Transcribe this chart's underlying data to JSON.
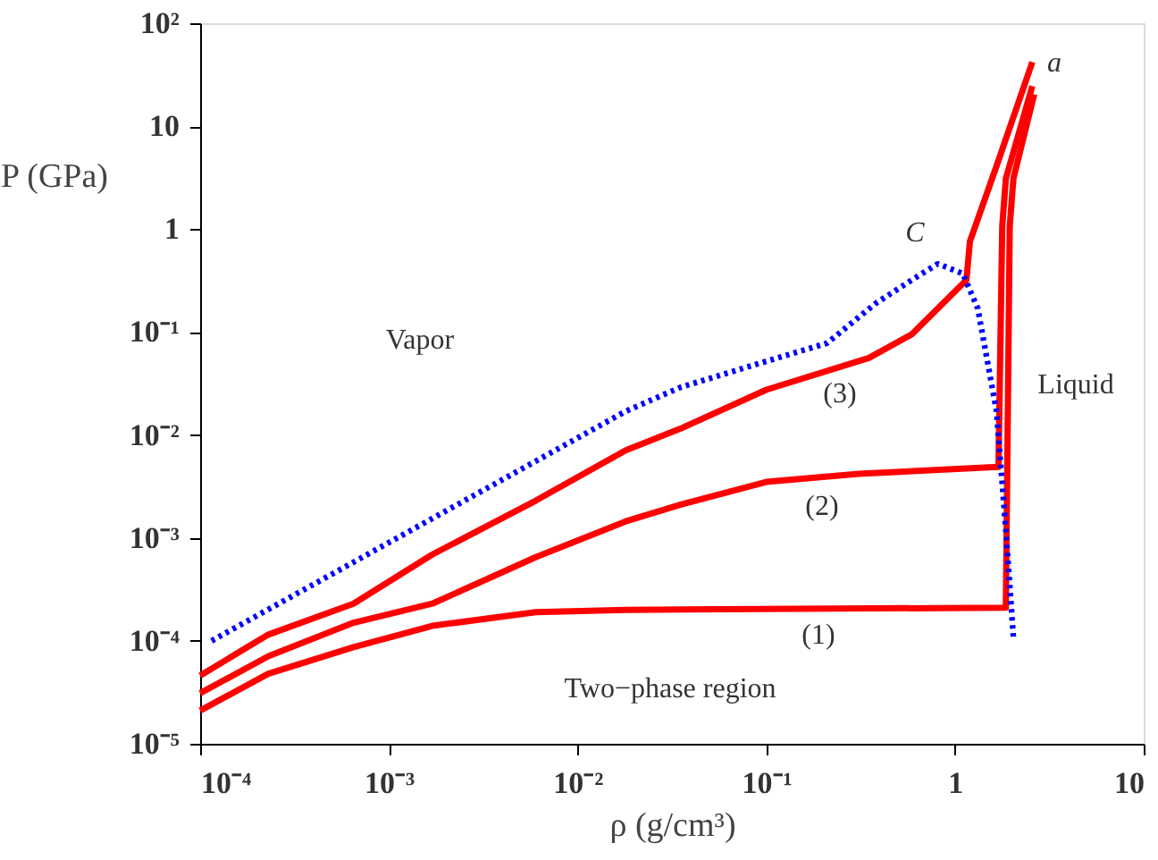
{
  "chart_data": {
    "type": "line",
    "log": "xy",
    "xlabel": "ρ (g/cm³)",
    "ylabel": "P (GPa)",
    "xlim": [
      0.0001,
      10
    ],
    "ylim": [
      1e-05,
      100
    ],
    "xticks": [
      {
        "value": 0.0001,
        "label": "10⁻⁴"
      },
      {
        "value": 0.001,
        "label": "10⁻³"
      },
      {
        "value": 0.01,
        "label": "10⁻²"
      },
      {
        "value": 0.1,
        "label": "10⁻¹"
      },
      1,
      10
    ],
    "yticks": [
      {
        "value": 1e-05,
        "label": "10⁻⁵"
      },
      {
        "value": 0.0001,
        "label": "10⁻⁴"
      },
      {
        "value": 0.001,
        "label": "10⁻³"
      },
      {
        "value": 0.01,
        "label": "10⁻²"
      },
      {
        "value": 0.1,
        "label": "10⁻¹"
      },
      1,
      10,
      {
        "value": 100,
        "label": "10²"
      }
    ],
    "series": [
      {
        "color": "#ff0000",
        "line_style": "solid",
        "x": [
          0.0001,
          0.00023,
          0.00065,
          0.0017,
          0.006,
          0.018,
          1.86,
          1.95,
          2.04,
          2.63
        ],
        "values": [
          2.1e-05,
          4.8e-05,
          8.7e-05,
          0.00014,
          0.00019,
          0.0002,
          0.00021,
          1.07,
          3.1,
          20.4
        ]
      },
      {
        "color": "#ff0000",
        "line_style": "solid",
        "x": [
          0.0001,
          0.00023,
          0.00065,
          0.0017,
          0.006,
          0.018,
          0.035,
          0.1,
          0.31,
          1.7,
          1.78,
          1.86,
          2.57
        ],
        "values": [
          3.1e-05,
          7.1e-05,
          0.00015,
          0.00023,
          0.00065,
          0.00145,
          0.0021,
          0.0035,
          0.0042,
          0.0049,
          1.07,
          3.1,
          24.5
        ]
      },
      {
        "color": "#ff0000",
        "line_style": "solid",
        "x": [
          0.0001,
          0.00023,
          0.00065,
          0.0017,
          0.006,
          0.018,
          0.035,
          0.1,
          0.35,
          0.59,
          1.15,
          1.2,
          1.66,
          2.57
        ],
        "values": [
          4.6e-05,
          0.000115,
          0.00023,
          0.00069,
          0.0023,
          0.0071,
          0.0115,
          0.0275,
          0.056,
          0.095,
          0.32,
          0.76,
          4.1,
          42
        ]
      },
      {
        "color": "#0000ff",
        "line_style": "dotted",
        "x": [
          0.000115,
          0.018,
          0.035,
          0.1,
          0.21,
          0.38,
          0.59,
          0.81,
          1.1,
          1.32,
          1.66,
          1.86,
          2.04
        ],
        "values": [
          0.0001,
          0.017,
          0.029,
          0.052,
          0.078,
          0.19,
          0.32,
          0.46,
          0.37,
          0.17,
          0.017,
          0.0012,
          0.000107
        ]
      }
    ],
    "annotations": [
      "(1)",
      "(2)",
      "(3)",
      "C",
      "a",
      "Vapor",
      "Liquid",
      "Two−phase region"
    ]
  }
}
